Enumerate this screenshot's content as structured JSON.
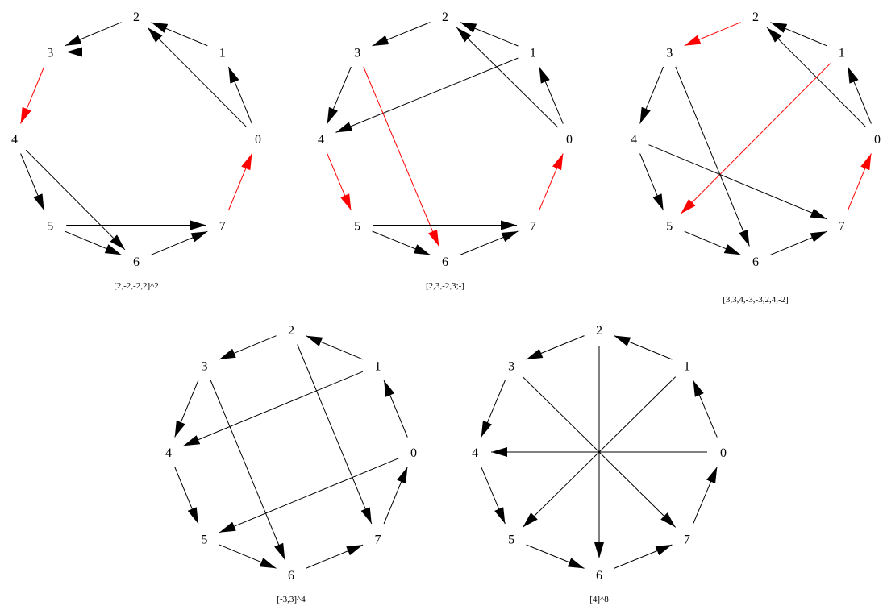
{
  "colors": {
    "default_edge": "#000000",
    "highlight_edge": "#ff0000",
    "background": "#ffffff"
  },
  "node_labels": [
    "0",
    "1",
    "2",
    "3",
    "4",
    "5",
    "6",
    "7"
  ],
  "graphs": [
    {
      "caption": "[2,-2,-2,2]^2",
      "edges": [
        {
          "from": 0,
          "to": 1,
          "color": "black"
        },
        {
          "from": 1,
          "to": 2,
          "color": "black"
        },
        {
          "from": 2,
          "to": 3,
          "color": "black"
        },
        {
          "from": 3,
          "to": 4,
          "color": "red"
        },
        {
          "from": 4,
          "to": 5,
          "color": "black"
        },
        {
          "from": 5,
          "to": 6,
          "color": "black"
        },
        {
          "from": 6,
          "to": 7,
          "color": "black"
        },
        {
          "from": 7,
          "to": 0,
          "color": "red"
        },
        {
          "from": 0,
          "to": 2,
          "color": "black"
        },
        {
          "from": 1,
          "to": 3,
          "color": "black"
        },
        {
          "from": 4,
          "to": 6,
          "color": "black"
        },
        {
          "from": 5,
          "to": 7,
          "color": "black"
        }
      ]
    },
    {
      "caption": "[2,3,-2,3;-]",
      "edges": [
        {
          "from": 0,
          "to": 1,
          "color": "black"
        },
        {
          "from": 1,
          "to": 2,
          "color": "black"
        },
        {
          "from": 2,
          "to": 3,
          "color": "black"
        },
        {
          "from": 3,
          "to": 4,
          "color": "black"
        },
        {
          "from": 4,
          "to": 5,
          "color": "red"
        },
        {
          "from": 5,
          "to": 6,
          "color": "black"
        },
        {
          "from": 6,
          "to": 7,
          "color": "black"
        },
        {
          "from": 7,
          "to": 0,
          "color": "red"
        },
        {
          "from": 0,
          "to": 2,
          "color": "black"
        },
        {
          "from": 1,
          "to": 4,
          "color": "black"
        },
        {
          "from": 3,
          "to": 6,
          "color": "red"
        },
        {
          "from": 5,
          "to": 7,
          "color": "black"
        }
      ]
    },
    {
      "caption": "[3,3,4,-3,-3,2,4,-2]",
      "edges": [
        {
          "from": 0,
          "to": 1,
          "color": "black"
        },
        {
          "from": 1,
          "to": 2,
          "color": "black"
        },
        {
          "from": 2,
          "to": 3,
          "color": "red"
        },
        {
          "from": 3,
          "to": 4,
          "color": "black"
        },
        {
          "from": 4,
          "to": 5,
          "color": "black"
        },
        {
          "from": 5,
          "to": 6,
          "color": "black"
        },
        {
          "from": 6,
          "to": 7,
          "color": "black"
        },
        {
          "from": 7,
          "to": 0,
          "color": "red"
        },
        {
          "from": 0,
          "to": 2,
          "color": "black"
        },
        {
          "from": 1,
          "to": 5,
          "color": "red"
        },
        {
          "from": 3,
          "to": 6,
          "color": "black"
        },
        {
          "from": 4,
          "to": 7,
          "color": "black"
        }
      ]
    },
    {
      "caption": "[-3,3]^4",
      "edges": [
        {
          "from": 0,
          "to": 1,
          "color": "black"
        },
        {
          "from": 1,
          "to": 2,
          "color": "black"
        },
        {
          "from": 2,
          "to": 3,
          "color": "black"
        },
        {
          "from": 3,
          "to": 4,
          "color": "black"
        },
        {
          "from": 4,
          "to": 5,
          "color": "black"
        },
        {
          "from": 5,
          "to": 6,
          "color": "black"
        },
        {
          "from": 6,
          "to": 7,
          "color": "black"
        },
        {
          "from": 7,
          "to": 0,
          "color": "black"
        },
        {
          "from": 1,
          "to": 4,
          "color": "black"
        },
        {
          "from": 2,
          "to": 7,
          "color": "black"
        },
        {
          "from": 3,
          "to": 6,
          "color": "black"
        },
        {
          "from": 0,
          "to": 5,
          "color": "black"
        }
      ]
    },
    {
      "caption": "[4]^8",
      "edges": [
        {
          "from": 0,
          "to": 1,
          "color": "black"
        },
        {
          "from": 1,
          "to": 2,
          "color": "black"
        },
        {
          "from": 2,
          "to": 3,
          "color": "black"
        },
        {
          "from": 3,
          "to": 4,
          "color": "black"
        },
        {
          "from": 4,
          "to": 5,
          "color": "black"
        },
        {
          "from": 5,
          "to": 6,
          "color": "black"
        },
        {
          "from": 6,
          "to": 7,
          "color": "black"
        },
        {
          "from": 7,
          "to": 0,
          "color": "black"
        },
        {
          "from": 0,
          "to": 4,
          "color": "black"
        },
        {
          "from": 1,
          "to": 5,
          "color": "black"
        },
        {
          "from": 2,
          "to": 6,
          "color": "black"
        },
        {
          "from": 3,
          "to": 7,
          "color": "black"
        }
      ]
    }
  ]
}
